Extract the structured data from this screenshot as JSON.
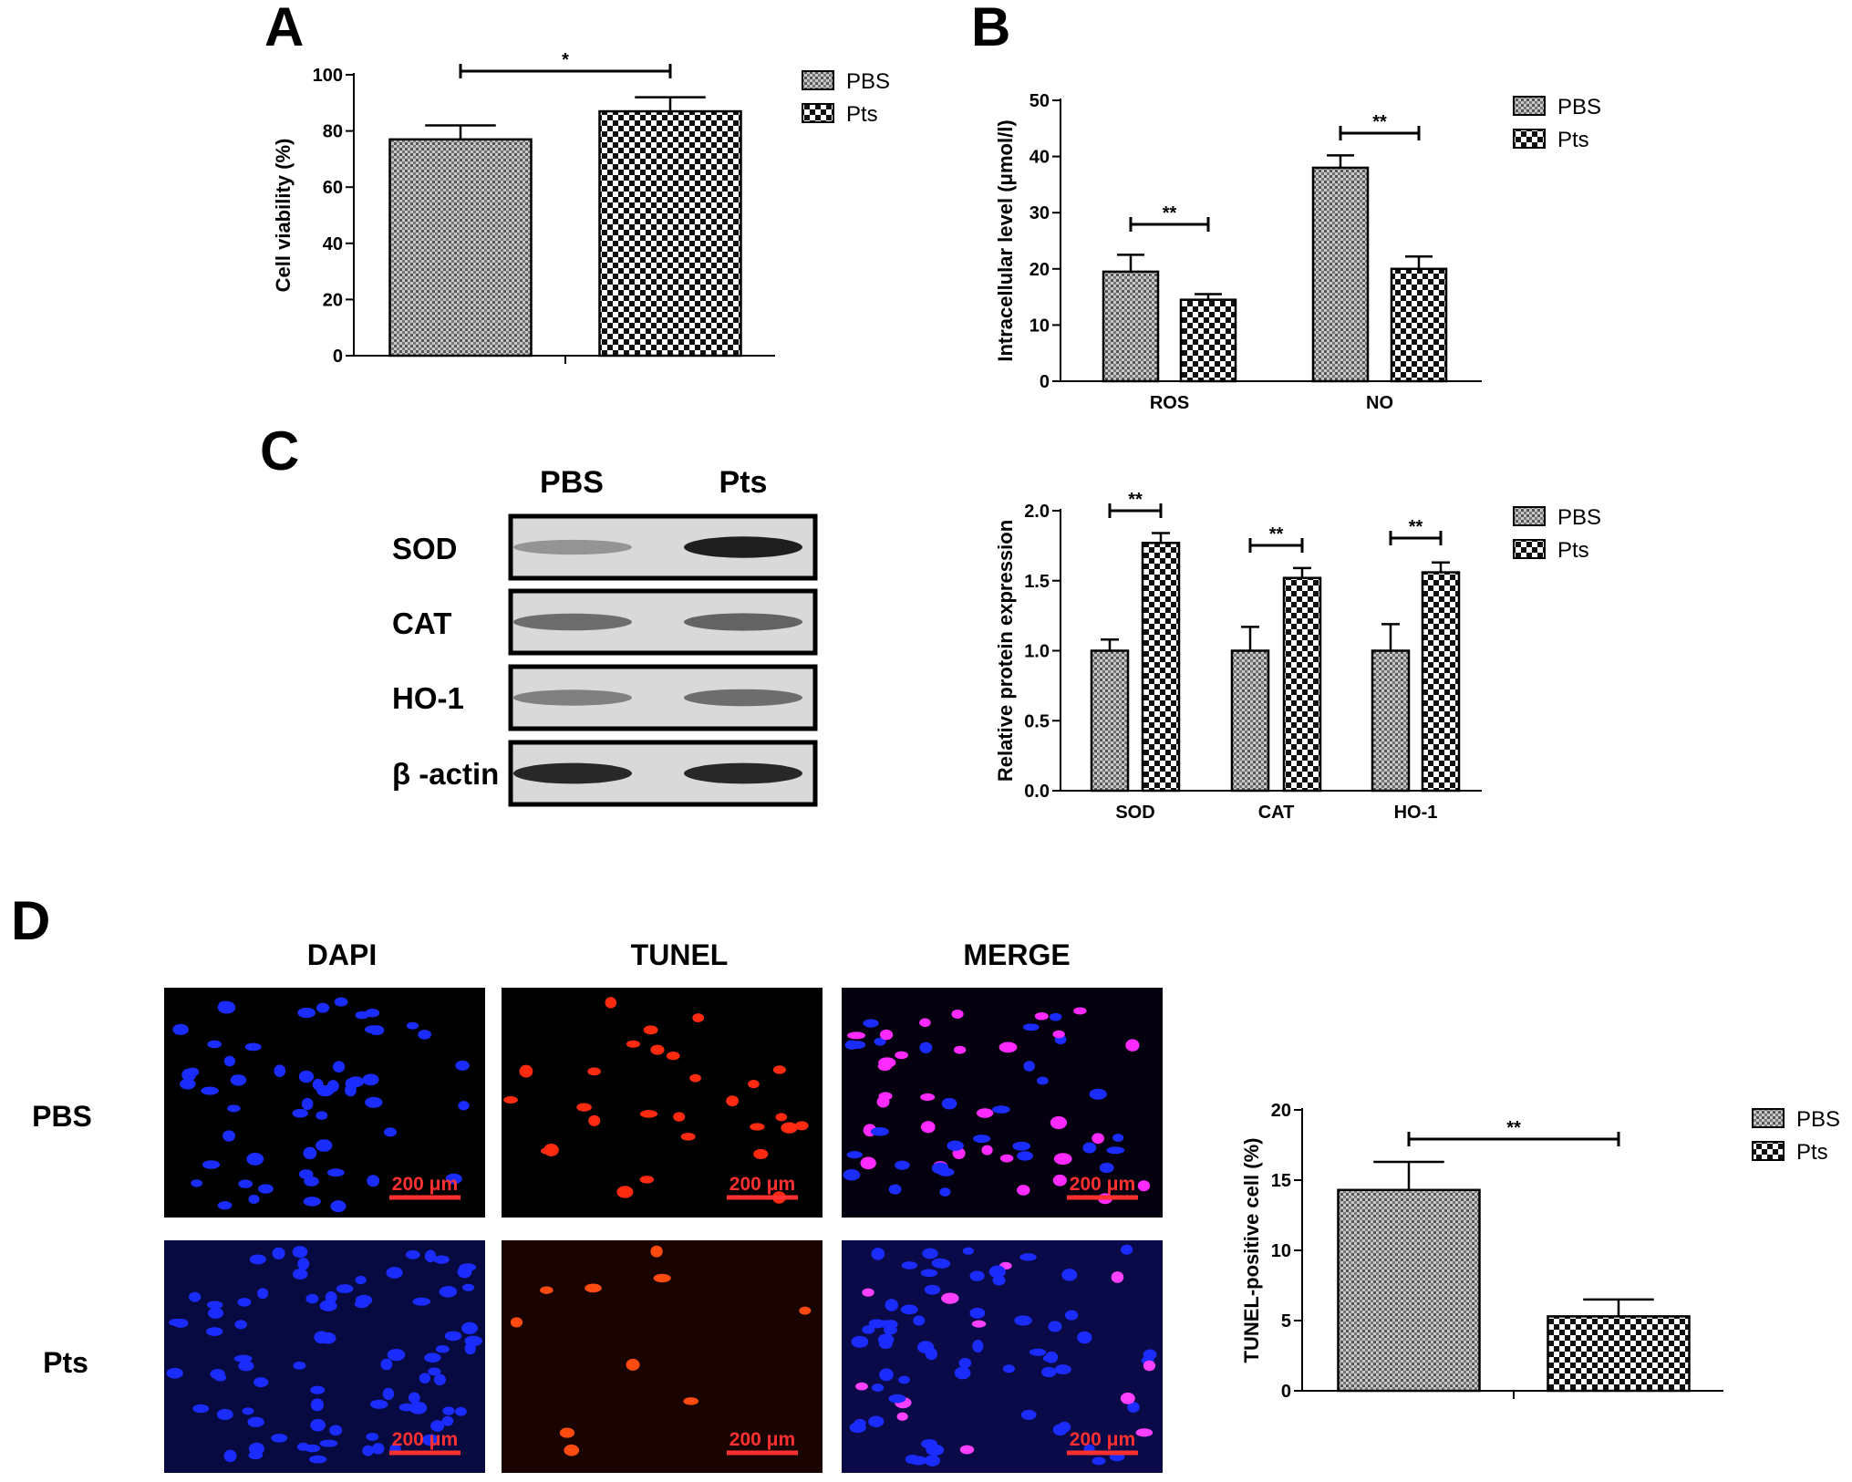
{
  "panel_letters": [
    "A",
    "B",
    "C",
    "D"
  ],
  "legend": {
    "pbs": "PBS",
    "pts": "Pts"
  },
  "chart_data": [
    {
      "panel": "A",
      "type": "bar",
      "ylabel": "Cell viability (%)",
      "xlabel": "",
      "ylim": [
        0,
        100
      ],
      "yticks": [
        "0",
        "20",
        "40",
        "60",
        "80",
        "100"
      ],
      "categories": [
        ""
      ],
      "series": [
        {
          "name": "PBS",
          "values": [
            77
          ],
          "errors": [
            5
          ]
        },
        {
          "name": "Pts",
          "values": [
            87
          ],
          "errors": [
            5
          ]
        }
      ],
      "significance": [
        "*"
      ]
    },
    {
      "panel": "B",
      "type": "bar",
      "ylabel": "Intracellular level (μmol/l)",
      "xlabel": "",
      "ylim": [
        0,
        50
      ],
      "yticks": [
        "0",
        "10",
        "20",
        "30",
        "40",
        "50"
      ],
      "categories": [
        "ROS",
        "NO"
      ],
      "series": [
        {
          "name": "PBS",
          "values": [
            19.5,
            38
          ],
          "errors": [
            3,
            2.2
          ]
        },
        {
          "name": "Pts",
          "values": [
            14.5,
            20
          ],
          "errors": [
            1,
            2.2
          ]
        }
      ],
      "significance": [
        "**",
        "**"
      ]
    },
    {
      "panel": "C",
      "type": "bar",
      "ylabel": "Relative protein expression",
      "xlabel": "",
      "ylim": [
        0,
        2.0
      ],
      "yticks": [
        "0.0",
        "0.5",
        "1.0",
        "1.5",
        "2.0"
      ],
      "categories": [
        "SOD",
        "CAT",
        "HO-1"
      ],
      "series": [
        {
          "name": "PBS",
          "values": [
            1.0,
            1.0,
            1.0
          ],
          "errors": [
            0.08,
            0.17,
            0.19
          ]
        },
        {
          "name": "Pts",
          "values": [
            1.77,
            1.52,
            1.56
          ],
          "errors": [
            0.07,
            0.07,
            0.07
          ]
        }
      ],
      "significance": [
        "**",
        "**",
        "**"
      ]
    },
    {
      "panel": "D",
      "type": "bar",
      "ylabel": "TUNEL-positive cell (%)",
      "xlabel": "",
      "ylim": [
        0,
        20
      ],
      "yticks": [
        "0",
        "5",
        "10",
        "15",
        "20"
      ],
      "categories": [
        ""
      ],
      "series": [
        {
          "name": "PBS",
          "values": [
            14.3
          ],
          "errors": [
            2
          ]
        },
        {
          "name": "Pts",
          "values": [
            5.3
          ],
          "errors": [
            1.2
          ]
        }
      ],
      "significance": [
        "**"
      ]
    }
  ],
  "western_blot": {
    "columns": [
      "PBS",
      "Pts"
    ],
    "rows": [
      "SOD",
      "CAT",
      "HO-1",
      "β -actin"
    ]
  },
  "microscopy": {
    "columns": [
      "DAPI",
      "TUNEL",
      "MERGE"
    ],
    "rows": [
      "PBS",
      "Pts"
    ],
    "scale_bar": "200 μm"
  }
}
